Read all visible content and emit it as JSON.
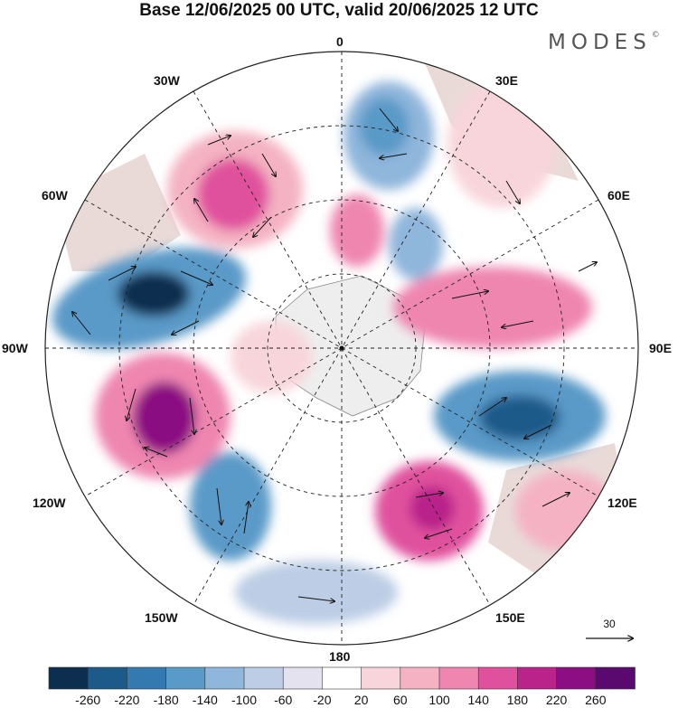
{
  "title": "Base 12/06/2025 00 UTC, valid 20/06/2025 12 UTC",
  "brand": "MODES",
  "brand_mark": "©",
  "longitude_labels": {
    "n0": "0",
    "n30w": "30W",
    "n30e": "30E",
    "n60w": "60W",
    "n60e": "60E",
    "w90": "90W",
    "e90": "90E",
    "s120w": "120W",
    "s120e": "120E",
    "s150w": "150W",
    "s150e": "150E",
    "s180": "180"
  },
  "reference_vector": {
    "label": "30"
  },
  "colorbar": {
    "colors": [
      "#0d2f4f",
      "#1c5a8a",
      "#3479b0",
      "#5a9ac8",
      "#8fb6db",
      "#bccde5",
      "#e3e2ee",
      "#ffffff",
      "#f8d5da",
      "#f4b2c2",
      "#ef86b0",
      "#e0519d",
      "#b9238a",
      "#8b0f82",
      "#5a0a6e"
    ],
    "labels": [
      "-260",
      "-220",
      "-180",
      "-140",
      "-100",
      "-60",
      "-20",
      "20",
      "60",
      "100",
      "140",
      "180",
      "220",
      "260"
    ]
  }
}
